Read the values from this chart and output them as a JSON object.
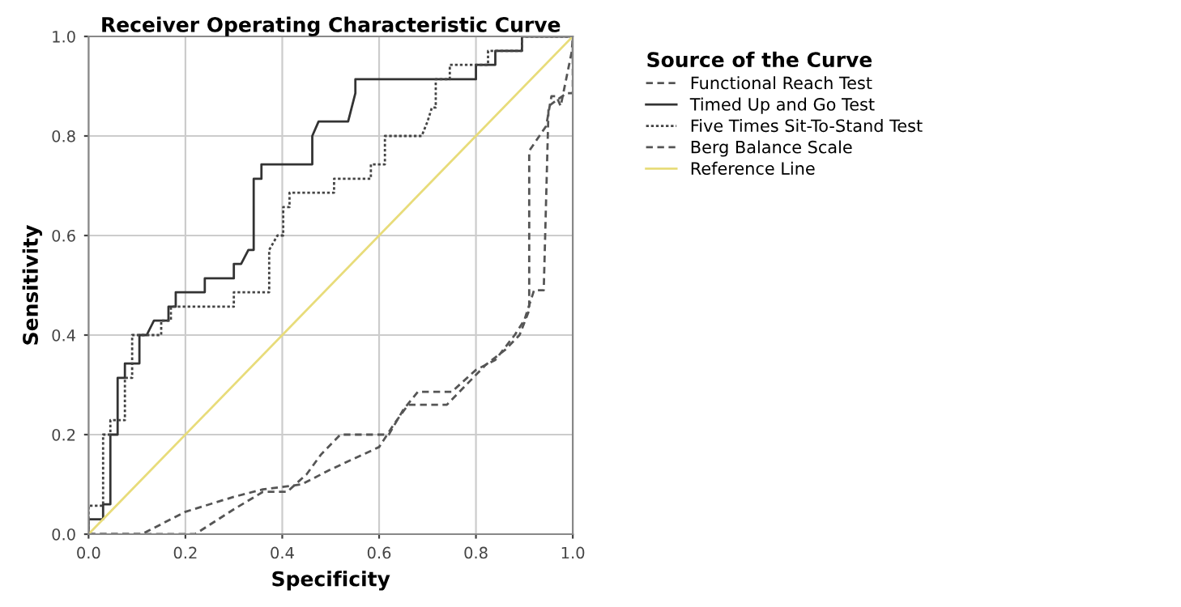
{
  "chart_data": {
    "type": "line",
    "title": "Receiver Operating Characteristic Curve",
    "xlabel": "Specificity",
    "ylabel": "Sensitivity",
    "legend_title": "Source of the Curve",
    "legend": "right",
    "grid": true,
    "xlim": [
      0,
      1
    ],
    "ylim": [
      0,
      1
    ],
    "xticks": [
      {
        "value": 0,
        "label": "0.0"
      },
      {
        "value": 0.2,
        "label": "0.2"
      },
      {
        "value": 0.4,
        "label": "0.4"
      },
      {
        "value": 0.6,
        "label": "0.6"
      },
      {
        "value": 0.8,
        "label": "0.8"
      },
      {
        "value": 1,
        "label": "1.0"
      }
    ],
    "yticks": [
      {
        "value": 0,
        "label": "0.0"
      },
      {
        "value": 0.2,
        "label": "0.2"
      },
      {
        "value": 0.4,
        "label": "0.4"
      },
      {
        "value": 0.6,
        "label": "0.6"
      },
      {
        "value": 0.8,
        "label": "0.8"
      },
      {
        "value": 1,
        "label": "1.0"
      }
    ],
    "series": [
      {
        "name": "Functional Reach Test",
        "color": "#555555",
        "line_style": "dashed",
        "x": [
          0,
          0.11,
          0.2,
          0.3,
          0.36,
          0.44,
          0.5,
          0.6,
          0.63,
          0.66,
          0.74,
          0.78,
          0.82,
          0.86,
          0.89,
          0.91,
          0.91,
          0.945,
          0.956,
          0.966,
          0.975,
          0.998,
          1
        ],
        "values": [
          0,
          0,
          0.045,
          0.075,
          0.09,
          0.1,
          0.13,
          0.175,
          0.22,
          0.26,
          0.26,
          0.3,
          0.34,
          0.37,
          0.4,
          0.45,
          0.77,
          0.82,
          0.88,
          0.88,
          0.86,
          0.97,
          1
        ]
      },
      {
        "name": "Timed Up and Go Test",
        "color": "#333333",
        "line_style": "solid",
        "x": [
          0,
          0,
          0.03,
          0.03,
          0.045,
          0.045,
          0.06,
          0.06,
          0.075,
          0.075,
          0.105,
          0.105,
          0.12,
          0.135,
          0.165,
          0.165,
          0.18,
          0.18,
          0.24,
          0.24,
          0.3,
          0.3,
          0.315,
          0.33,
          0.341,
          0.341,
          0.357,
          0.357,
          0.462,
          0.462,
          0.475,
          0.536,
          0.551,
          0.551,
          0.8,
          0.8,
          0.84,
          0.84,
          0.895,
          0.895,
          1
        ],
        "values": [
          0,
          0.03,
          0.03,
          0.06,
          0.06,
          0.2,
          0.2,
          0.314,
          0.314,
          0.343,
          0.343,
          0.4,
          0.4,
          0.429,
          0.429,
          0.457,
          0.457,
          0.486,
          0.486,
          0.514,
          0.514,
          0.543,
          0.543,
          0.571,
          0.571,
          0.714,
          0.714,
          0.743,
          0.743,
          0.8,
          0.829,
          0.829,
          0.886,
          0.914,
          0.914,
          0.943,
          0.943,
          0.971,
          0.971,
          1,
          1
        ]
      },
      {
        "name": "Five Times Sit-To-Stand Test",
        "color": "#444444",
        "line_style": "dotted",
        "x": [
          0,
          0,
          0.03,
          0.03,
          0.045,
          0.045,
          0.075,
          0.075,
          0.09,
          0.09,
          0.15,
          0.15,
          0.17,
          0.17,
          0.3,
          0.3,
          0.373,
          0.373,
          0.39,
          0.402,
          0.402,
          0.415,
          0.415,
          0.507,
          0.507,
          0.583,
          0.583,
          0.612,
          0.612,
          0.688,
          0.7,
          0.709,
          0.717,
          0.717,
          0.746,
          0.746,
          0.825,
          0.825,
          0.895,
          0.895,
          1
        ],
        "values": [
          0,
          0.057,
          0.057,
          0.2,
          0.2,
          0.229,
          0.229,
          0.314,
          0.314,
          0.4,
          0.4,
          0.429,
          0.429,
          0.457,
          0.457,
          0.486,
          0.486,
          0.571,
          0.6,
          0.6,
          0.657,
          0.657,
          0.686,
          0.686,
          0.714,
          0.714,
          0.743,
          0.743,
          0.8,
          0.8,
          0.829,
          0.857,
          0.857,
          0.914,
          0.914,
          0.943,
          0.943,
          0.971,
          0.971,
          1,
          1
        ]
      },
      {
        "name": "Berg Balance Scale",
        "color": "#555555",
        "line_style": "dashed",
        "x": [
          0,
          0.22,
          0.3,
          0.36,
          0.41,
          0.45,
          0.48,
          0.52,
          0.62,
          0.65,
          0.68,
          0.75,
          0.8,
          0.84,
          0.88,
          0.9,
          0.92,
          0.94,
          0.95,
          0.987,
          1,
          1
        ],
        "values": [
          0,
          0,
          0.05,
          0.085,
          0.085,
          0.12,
          0.16,
          0.2,
          0.2,
          0.25,
          0.286,
          0.286,
          0.33,
          0.35,
          0.4,
          0.43,
          0.49,
          0.49,
          0.86,
          0.886,
          0.886,
          1
        ]
      },
      {
        "name": "Reference Line",
        "color": "#e8dc7a",
        "line_style": "solid",
        "x": [
          0,
          1
        ],
        "values": [
          0,
          1
        ]
      }
    ]
  }
}
